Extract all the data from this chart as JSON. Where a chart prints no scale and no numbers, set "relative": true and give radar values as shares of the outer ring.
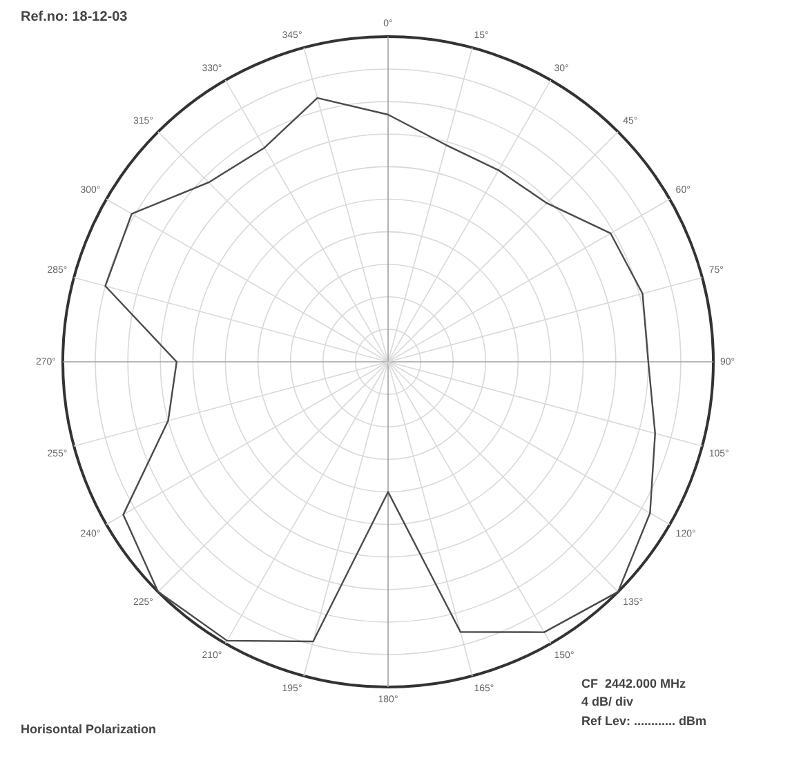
{
  "chart_data": {
    "type": "radar",
    "title": "Ref.no: 18-12-03",
    "annotations": [
      "Horisontal Polarization",
      "CF  2442.000 MHz",
      "4 dB/ div",
      "Ref Lev: ............ dBm"
    ],
    "categories": [
      "0°",
      "15°",
      "30°",
      "45°",
      "60°",
      "75°",
      "90°",
      "105°",
      "120°",
      "135°",
      "150°",
      "165°",
      "180°",
      "195°",
      "210°",
      "225°",
      "240°",
      "255°",
      "270°",
      "285°",
      "300°",
      "315°",
      "330°",
      "345°"
    ],
    "series": [
      {
        "color": "#4a4a4a",
        "values": [
          0.76,
          0.69,
          0.68,
          0.69,
          0.79,
          0.81,
          0.8,
          0.85,
          0.93,
          1.0,
          0.96,
          0.86,
          0.4,
          0.89,
          0.99,
          1.0,
          0.94,
          0.7,
          0.65,
          0.9,
          0.91,
          0.78,
          0.76,
          0.84
        ]
      }
    ],
    "relative": true,
    "grid": true,
    "marker": "none"
  }
}
